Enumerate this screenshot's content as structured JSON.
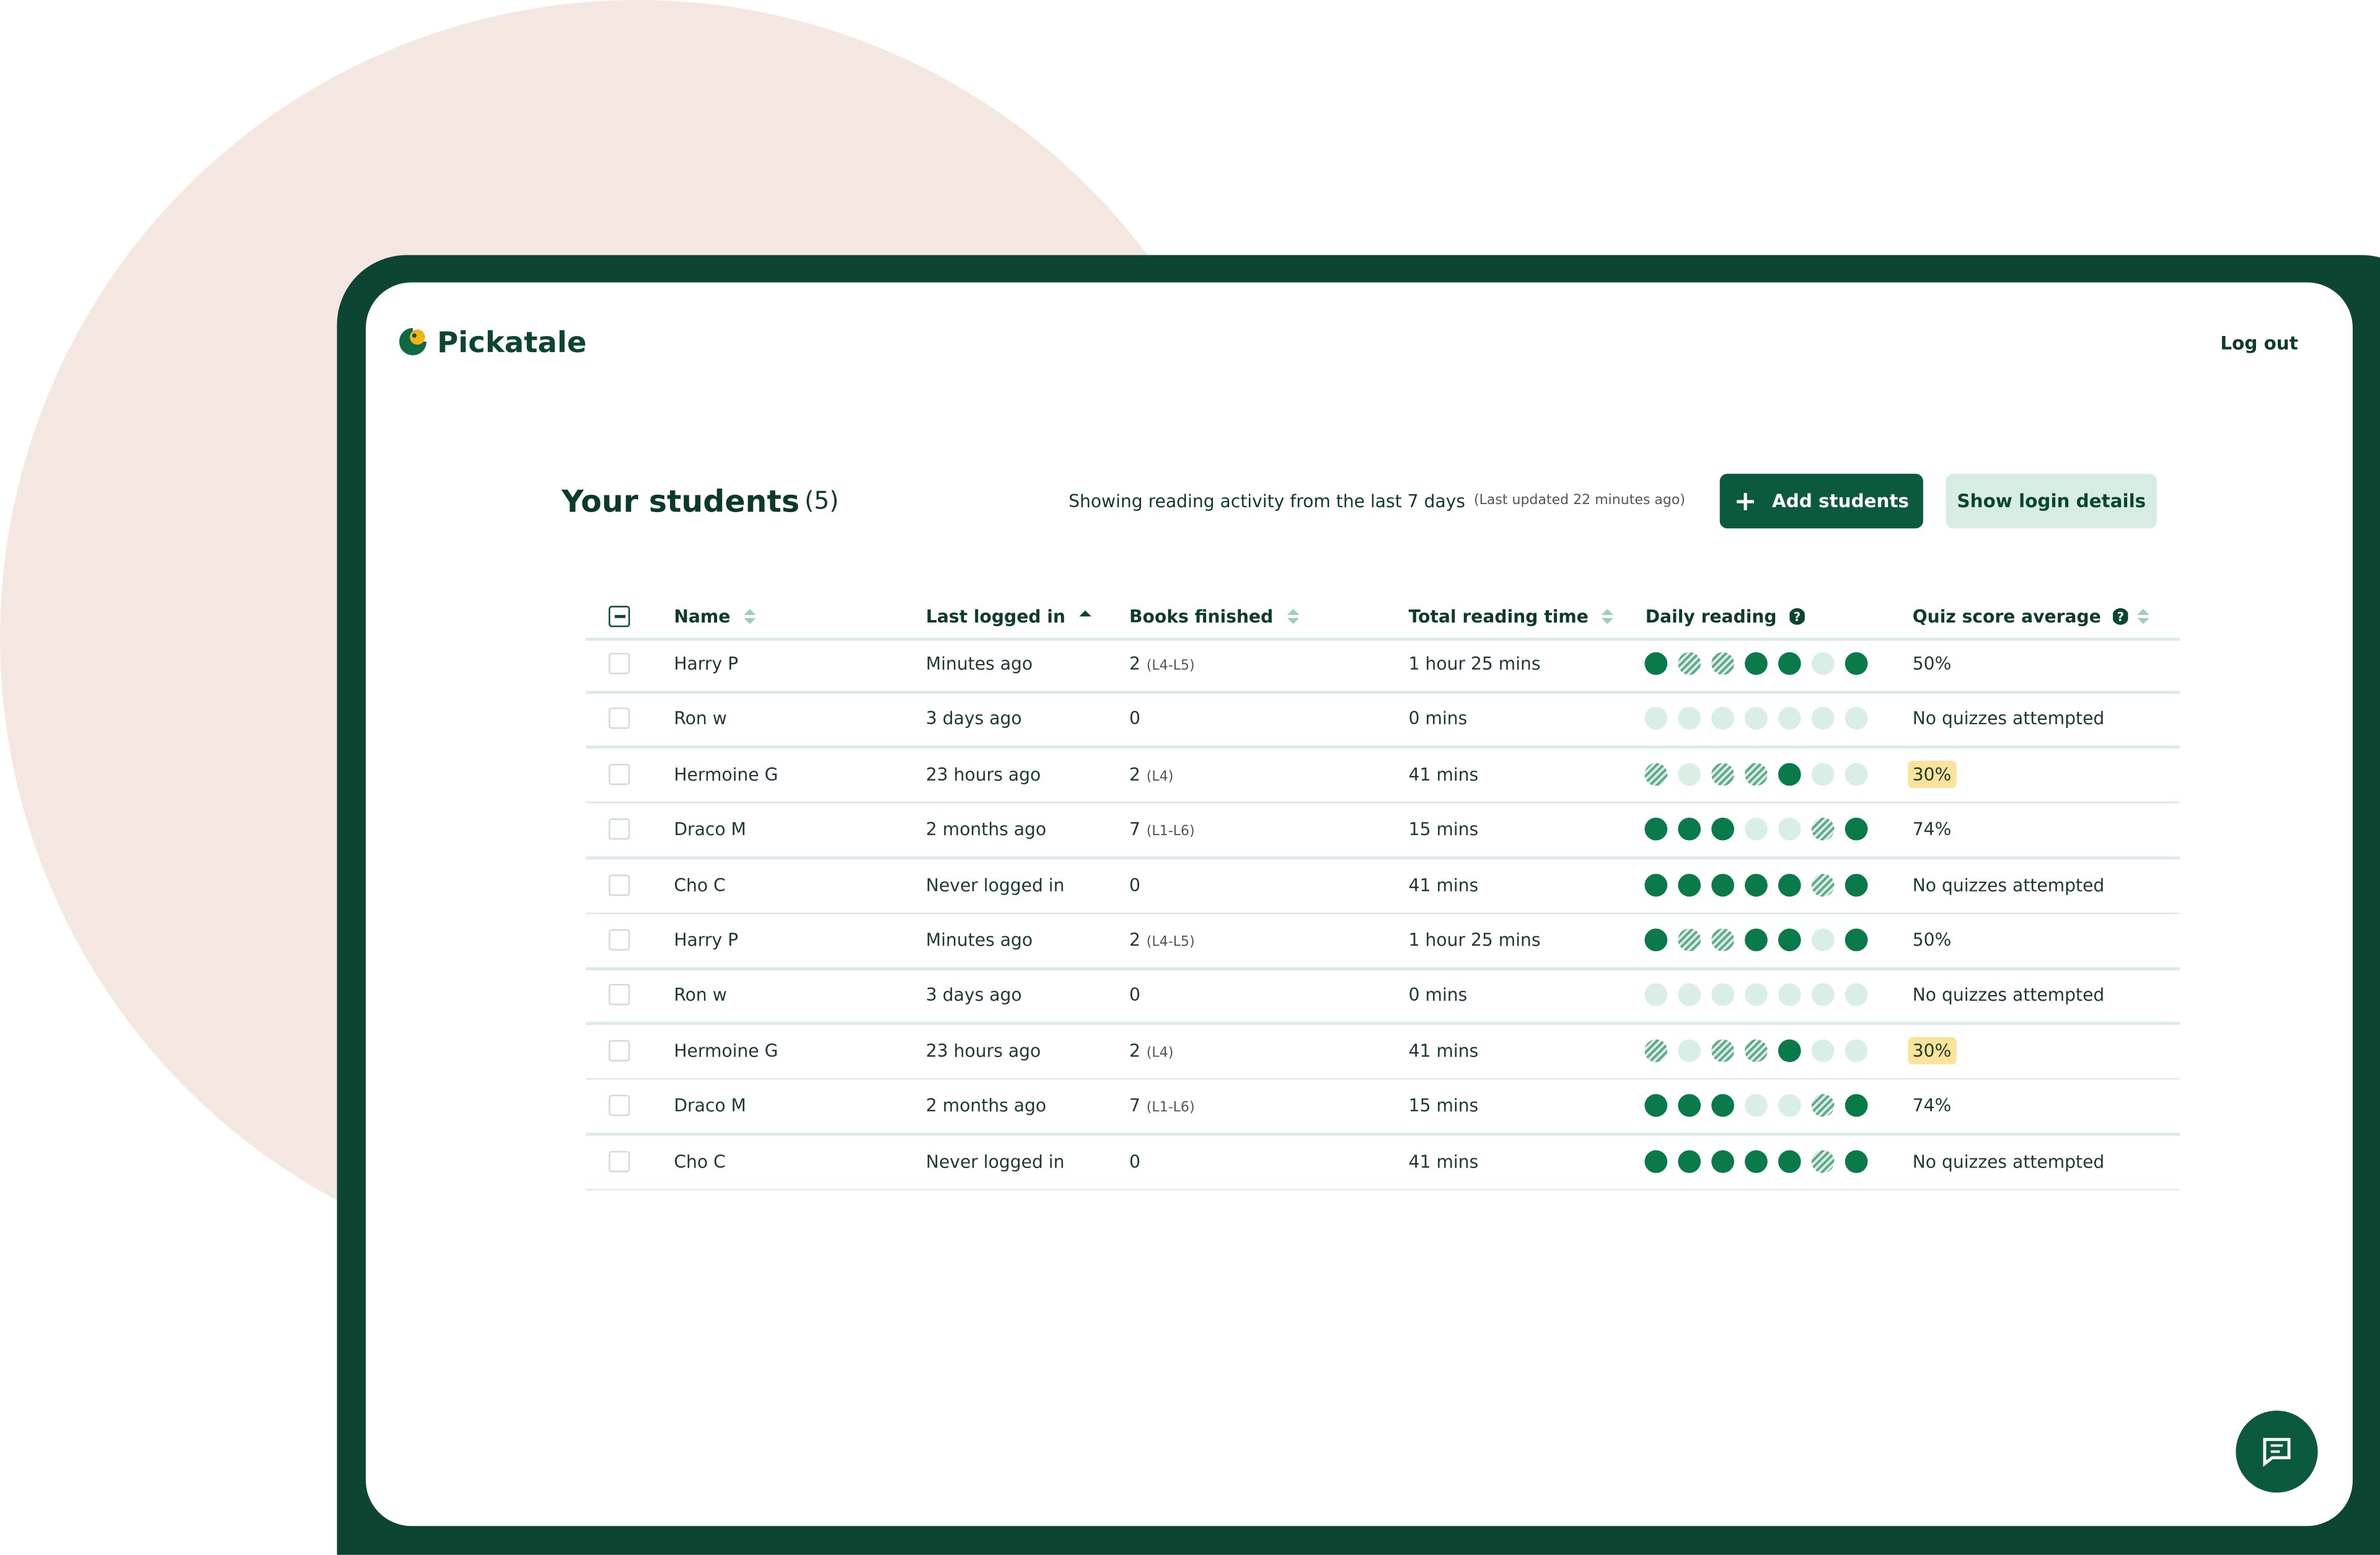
{
  "header": {
    "logo": "Pickatale",
    "logout": "Log out"
  },
  "toolbar": {
    "title": "Your students",
    "count": "(5)",
    "activity": "Showing reading activity from the last 7 days",
    "updated": "(Last updated 22 minutes ago)",
    "add_button": "Add students",
    "login_button": "Show login details"
  },
  "table": {
    "columns": [
      "Name",
      "Last logged in",
      "Books finished",
      "Total reading time",
      "Daily reading",
      "Quiz score average"
    ],
    "rows": [
      {
        "name": "Harry P",
        "last_login": "Minutes ago",
        "books": 2,
        "levels": "(L4-L5)",
        "reading_time": "1 hour 25 mins",
        "daily": [
          "full",
          "partial",
          "partial",
          "full",
          "full",
          "none",
          "full"
        ],
        "quiz": "50%",
        "quiz_highlight": false
      },
      {
        "name": "Ron w",
        "last_login": "3 days ago",
        "books": 0,
        "reading_time": "0 mins",
        "daily": [
          "none",
          "none",
          "none",
          "none",
          "none",
          "none",
          "none"
        ],
        "quiz": "No quizzes attempted",
        "quiz_highlight": false
      },
      {
        "name": "Hermoine G",
        "last_login": "23 hours ago",
        "books": 2,
        "levels": "(L4)",
        "reading_time": "41 mins",
        "daily": [
          "partial",
          "none",
          "partial",
          "partial",
          "full",
          "none",
          "none"
        ],
        "quiz": "30%",
        "quiz_highlight": true
      },
      {
        "name": "Draco M",
        "last_login": "2 months ago",
        "books": 7,
        "levels": "(L1-L6)",
        "reading_time": "15 mins",
        "daily": [
          "full",
          "full",
          "full",
          "none",
          "none",
          "partial",
          "full"
        ],
        "quiz": "74%",
        "quiz_highlight": false
      },
      {
        "name": "Cho C",
        "last_login": "Never logged in",
        "books": 0,
        "reading_time": "41 mins",
        "daily": [
          "full",
          "full",
          "full",
          "full",
          "full",
          "partial",
          "full"
        ],
        "quiz": "No quizzes attempted",
        "quiz_highlight": false
      },
      {
        "name": "Harry P",
        "last_login": "Minutes ago",
        "books": 2,
        "levels": "(L4-L5)",
        "reading_time": "1 hour 25 mins",
        "daily": [
          "full",
          "partial",
          "partial",
          "full",
          "full",
          "none",
          "full"
        ],
        "quiz": "50%",
        "quiz_highlight": false
      },
      {
        "name": "Ron w",
        "last_login": "3 days ago",
        "books": 0,
        "reading_time": "0 mins",
        "daily": [
          "none",
          "none",
          "none",
          "none",
          "none",
          "none",
          "none"
        ],
        "quiz": "No quizzes attempted",
        "quiz_highlight": false
      },
      {
        "name": "Hermoine G",
        "last_login": "23 hours ago",
        "books": 2,
        "levels": "(L4)",
        "reading_time": "41 mins",
        "daily": [
          "partial",
          "none",
          "partial",
          "partial",
          "full",
          "none",
          "none"
        ],
        "quiz": "30%",
        "quiz_highlight": true
      },
      {
        "name": "Draco M",
        "last_login": "2 months ago",
        "books": 7,
        "levels": "(L1-L6)",
        "reading_time": "15 mins",
        "daily": [
          "full",
          "full",
          "full",
          "none",
          "none",
          "partial",
          "full"
        ],
        "quiz": "74%",
        "quiz_highlight": false
      },
      {
        "name": "Cho C",
        "last_login": "Never logged in",
        "books": 0,
        "reading_time": "41 mins",
        "daily": [
          "full",
          "full",
          "full",
          "full",
          "full",
          "partial",
          "full"
        ],
        "quiz": "No quizzes attempted",
        "quiz_highlight": false
      }
    ]
  }
}
